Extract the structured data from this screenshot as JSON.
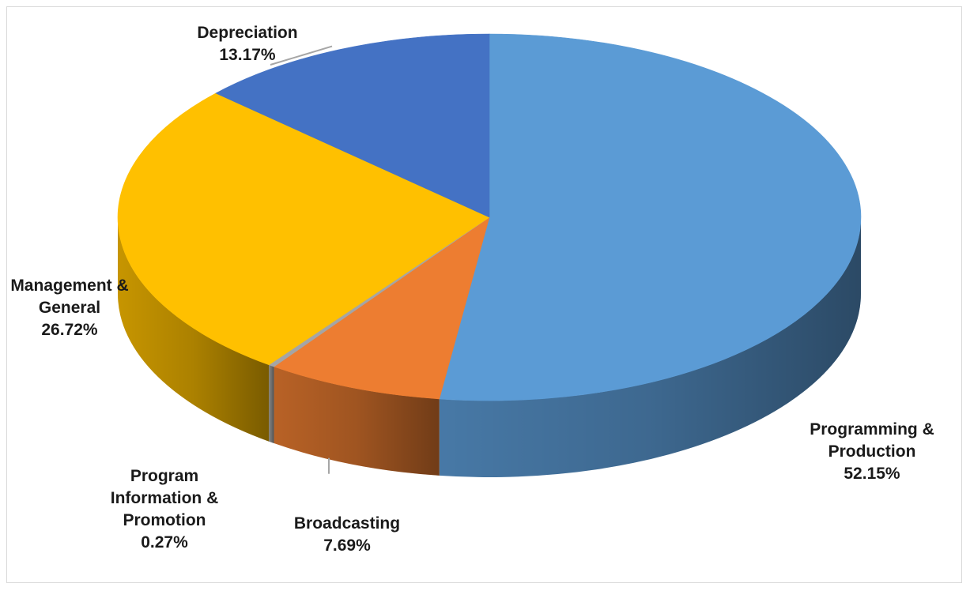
{
  "chart_data": {
    "type": "pie",
    "style": "3d",
    "title": "",
    "legend": "none",
    "slices": [
      {
        "label": "Programming & Production",
        "label_lines": [
          "Programming &",
          "Production"
        ],
        "value": 52.15,
        "value_label": "52.15%",
        "color": "#5b9bd5"
      },
      {
        "label": "Broadcasting",
        "label_lines": [
          "Broadcasting"
        ],
        "value": 7.69,
        "value_label": "7.69%",
        "color": "#ed7d31"
      },
      {
        "label": "Program Information & Promotion",
        "label_lines": [
          "Program",
          "Information &",
          "Promotion"
        ],
        "value": 0.27,
        "value_label": "0.27%",
        "color": "#a5a5a5"
      },
      {
        "label": "Management & General",
        "label_lines": [
          "Management &",
          "General"
        ],
        "value": 26.72,
        "value_label": "26.72%",
        "color": "#ffc000"
      },
      {
        "label": "Depreciation",
        "label_lines": [
          "Depreciation"
        ],
        "value": 13.17,
        "value_label": "13.17%",
        "color": "#4472c4"
      }
    ]
  }
}
